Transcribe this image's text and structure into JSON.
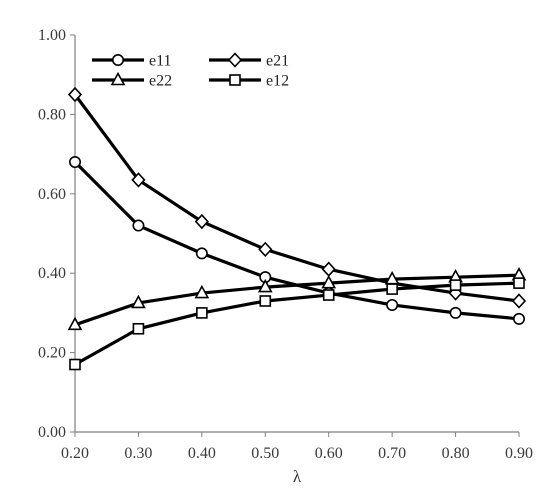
{
  "chart_data": {
    "type": "line",
    "title": "",
    "xlabel": "λ",
    "ylabel": "",
    "x": [
      0.2,
      0.3,
      0.4,
      0.5,
      0.6,
      0.7,
      0.8,
      0.9
    ],
    "xlim": [
      0.2,
      0.9
    ],
    "ylim": [
      0.0,
      1.0
    ],
    "x_ticks": [
      "0.20",
      "0.30",
      "0.40",
      "0.50",
      "0.60",
      "0.70",
      "0.80",
      "0.90"
    ],
    "y_ticks": [
      "0.00",
      "0.20",
      "0.40",
      "0.60",
      "0.80",
      "1.00"
    ],
    "grid": false,
    "legend_position": "top-left",
    "line_color": "#000000",
    "series": [
      {
        "name": "e11",
        "marker": "circle",
        "values": [
          0.68,
          0.52,
          0.45,
          0.39,
          0.35,
          0.32,
          0.3,
          0.285
        ]
      },
      {
        "name": "e21",
        "marker": "diamond",
        "values": [
          0.85,
          0.635,
          0.53,
          0.46,
          0.41,
          0.375,
          0.35,
          0.33
        ]
      },
      {
        "name": "e22",
        "marker": "triangle",
        "values": [
          0.27,
          0.325,
          0.35,
          0.365,
          0.375,
          0.385,
          0.39,
          0.395
        ]
      },
      {
        "name": "e12",
        "marker": "square",
        "values": [
          0.17,
          0.26,
          0.3,
          0.33,
          0.345,
          0.36,
          0.37,
          0.375
        ]
      }
    ]
  }
}
